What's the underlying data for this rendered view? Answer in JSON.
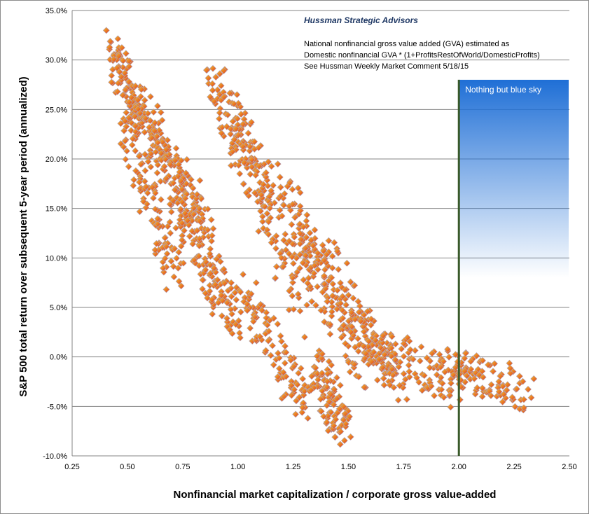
{
  "chart_data": {
    "type": "scatter",
    "title": "",
    "xlabel": "Nonfinancial market capitalization / corporate gross value-added",
    "ylabel": "S&P 500 total return over subsequent 5-year period (annualized)",
    "xlim": [
      0.25,
      2.5
    ],
    "ylim": [
      -10.0,
      35.0
    ],
    "x_ticks": [
      "0.25",
      "0.50",
      "0.75",
      "1.00",
      "1.25",
      "1.50",
      "1.75",
      "2.00",
      "2.25",
      "2.50"
    ],
    "y_ticks": [
      "-10.0%",
      "-5.0%",
      "0.0%",
      "5.0%",
      "10.0%",
      "15.0%",
      "20.0%",
      "25.0%",
      "30.0%",
      "35.0%"
    ],
    "grid": "horizontal",
    "marker": "diamond",
    "marker_color": "#e8541c",
    "annotation": {
      "title": "Hussman Strategic Advisors",
      "lines": [
        "National nonfinancial gross value added (GVA) estimated as",
        "Domestic nonfinancial GVA * (1+ProfitsRestOfWorld/DomesticProfits)",
        "See Hussman Weekly Market Comment  5/18/15"
      ]
    },
    "vertical_line": {
      "x": 2.0,
      "color": "#3a5a2a"
    },
    "shaded_region": {
      "x_from": 2.0,
      "x_to": 2.5,
      "y_from": 8.0,
      "y_to": 28.0,
      "label": "Nothing but blue sky",
      "color": "#1f6fd6"
    },
    "clusters": [
      {
        "x": [
          0.44,
          0.55
        ],
        "y": [
          31.0,
          24.0
        ]
      },
      {
        "x": [
          0.5,
          0.72
        ],
        "y": [
          23.0,
          8.0
        ]
      },
      {
        "x": [
          0.55,
          0.8
        ],
        "y": [
          26.0,
          13.0
        ]
      },
      {
        "x": [
          0.62,
          0.92
        ],
        "y": [
          24.0,
          5.0
        ]
      },
      {
        "x": [
          0.75,
          1.0
        ],
        "y": [
          19.0,
          2.0
        ]
      },
      {
        "x": [
          0.88,
          1.13
        ],
        "y": [
          28.5,
          17.0
        ]
      },
      {
        "x": [
          0.95,
          1.3
        ],
        "y": [
          25.0,
          4.0
        ]
      },
      {
        "x": [
          1.0,
          1.3
        ],
        "y": [
          7.0,
          -4.5
        ]
      },
      {
        "x": [
          1.15,
          1.5
        ],
        "y": [
          18.0,
          6.0
        ]
      },
      {
        "x": [
          1.25,
          1.6
        ],
        "y": [
          12.0,
          -2.0
        ]
      },
      {
        "x": [
          1.35,
          1.48
        ],
        "y": [
          -1.0,
          -7.5
        ]
      },
      {
        "x": [
          1.5,
          1.75
        ],
        "y": [
          5.0,
          -3.0
        ]
      },
      {
        "x": [
          1.6,
          2.0
        ],
        "y": [
          1.5,
          -3.0
        ]
      },
      {
        "x": [
          1.95,
          2.3
        ],
        "y": [
          -0.8,
          -3.5
        ]
      }
    ],
    "point_count": 1500
  }
}
